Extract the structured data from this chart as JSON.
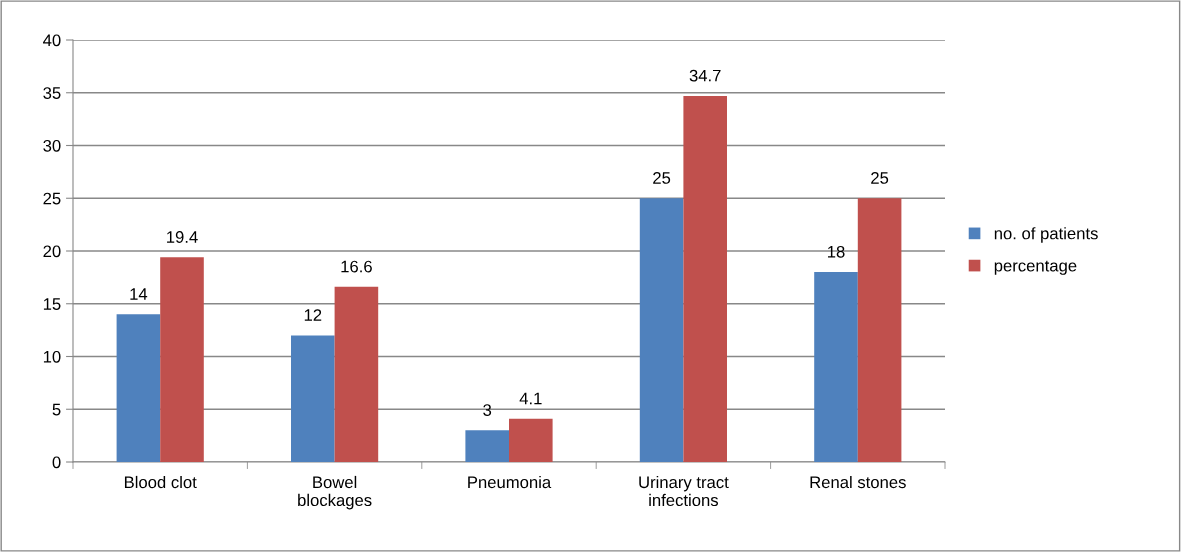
{
  "chart_data": {
    "type": "bar",
    "categories": [
      "Blood clot",
      "Bowel\nblockages",
      "Pneumonia",
      "Urinary tract\ninfections",
      "Renal stones"
    ],
    "series": [
      {
        "name": "no. of patients",
        "color": "#4f81bd",
        "values": [
          14,
          12,
          3,
          25,
          18
        ]
      },
      {
        "name": "percentage",
        "color": "#c0504d",
        "values": [
          19.4,
          16.6,
          4.1,
          34.7,
          25
        ]
      }
    ],
    "ylim": [
      0,
      40
    ],
    "yticks": [
      0,
      5,
      10,
      15,
      20,
      25,
      30,
      35,
      40
    ],
    "grid": "y",
    "legend": "right",
    "data_labels": true
  }
}
